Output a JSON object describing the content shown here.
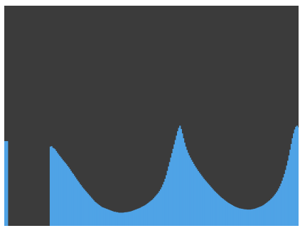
{
  "histogram": {
    "colors": {
      "background": "#3b3b3b",
      "bars": "#4fa3e6",
      "frame": "#ffffff"
    }
  },
  "chart_data": {
    "type": "bar",
    "title": "",
    "xlabel": "",
    "ylabel": "",
    "grid": false,
    "ylim": [
      0,
      1
    ],
    "values": [
      0.385,
      0.385,
      0.385,
      0,
      0,
      0,
      0,
      0,
      0,
      0,
      0,
      0,
      0,
      0,
      0,
      0,
      0,
      0,
      0,
      0,
      0,
      0,
      0,
      0,
      0,
      0,
      0,
      0,
      0,
      0,
      0,
      0,
      0,
      0,
      0,
      0,
      0,
      0,
      0,
      0,
      0.36,
      0.362,
      0.355,
      0.352,
      0.348,
      0.34,
      0.332,
      0.325,
      0.318,
      0.312,
      0.305,
      0.298,
      0.292,
      0.286,
      0.28,
      0.272,
      0.266,
      0.258,
      0.25,
      0.242,
      0.236,
      0.228,
      0.22,
      0.212,
      0.205,
      0.198,
      0.19,
      0.184,
      0.176,
      0.17,
      0.164,
      0.158,
      0.152,
      0.146,
      0.14,
      0.134,
      0.128,
      0.122,
      0.116,
      0.11,
      0.106,
      0.102,
      0.098,
      0.094,
      0.09,
      0.086,
      0.084,
      0.082,
      0.08,
      0.078,
      0.076,
      0.074,
      0.072,
      0.07,
      0.068,
      0.066,
      0.064,
      0.064,
      0.062,
      0.062,
      0.06,
      0.06,
      0.06,
      0.06,
      0.06,
      0.061,
      0.062,
      0.062,
      0.063,
      0.064,
      0.065,
      0.066,
      0.068,
      0.07,
      0.072,
      0.074,
      0.076,
      0.078,
      0.08,
      0.082,
      0.085,
      0.088,
      0.09,
      0.093,
      0.096,
      0.1,
      0.104,
      0.108,
      0.112,
      0.116,
      0.12,
      0.126,
      0.132,
      0.138,
      0.144,
      0.15,
      0.158,
      0.166,
      0.176,
      0.188,
      0.2,
      0.214,
      0.23,
      0.25,
      0.27,
      0.29,
      0.31,
      0.33,
      0.35,
      0.37,
      0.39,
      0.41,
      0.43,
      0.445,
      0.455,
      0.44,
      0.42,
      0.398,
      0.378,
      0.36,
      0.345,
      0.332,
      0.32,
      0.31,
      0.3,
      0.291,
      0.282,
      0.273,
      0.265,
      0.257,
      0.249,
      0.242,
      0.235,
      0.228,
      0.221,
      0.214,
      0.208,
      0.202,
      0.196,
      0.19,
      0.184,
      0.178,
      0.172,
      0.166,
      0.16,
      0.155,
      0.15,
      0.145,
      0.14,
      0.135,
      0.13,
      0.126,
      0.122,
      0.118,
      0.114,
      0.11,
      0.106,
      0.103,
      0.1,
      0.097,
      0.094,
      0.091,
      0.088,
      0.086,
      0.084,
      0.082,
      0.08,
      0.079,
      0.078,
      0.077,
      0.076,
      0.075,
      0.075,
      0.074,
      0.074,
      0.074,
      0.074,
      0.075,
      0.076,
      0.077,
      0.078,
      0.08,
      0.082,
      0.084,
      0.086,
      0.088,
      0.09,
      0.093,
      0.096,
      0.1,
      0.104,
      0.108,
      0.112,
      0.116,
      0.121,
      0.126,
      0.132,
      0.138,
      0.145,
      0.152,
      0.16,
      0.17,
      0.18,
      0.192,
      0.205,
      0.22,
      0.236,
      0.254,
      0.274,
      0.296,
      0.32,
      0.346,
      0.372,
      0.398,
      0.42,
      0.438,
      0.45,
      0.455,
      0.448
    ]
  }
}
